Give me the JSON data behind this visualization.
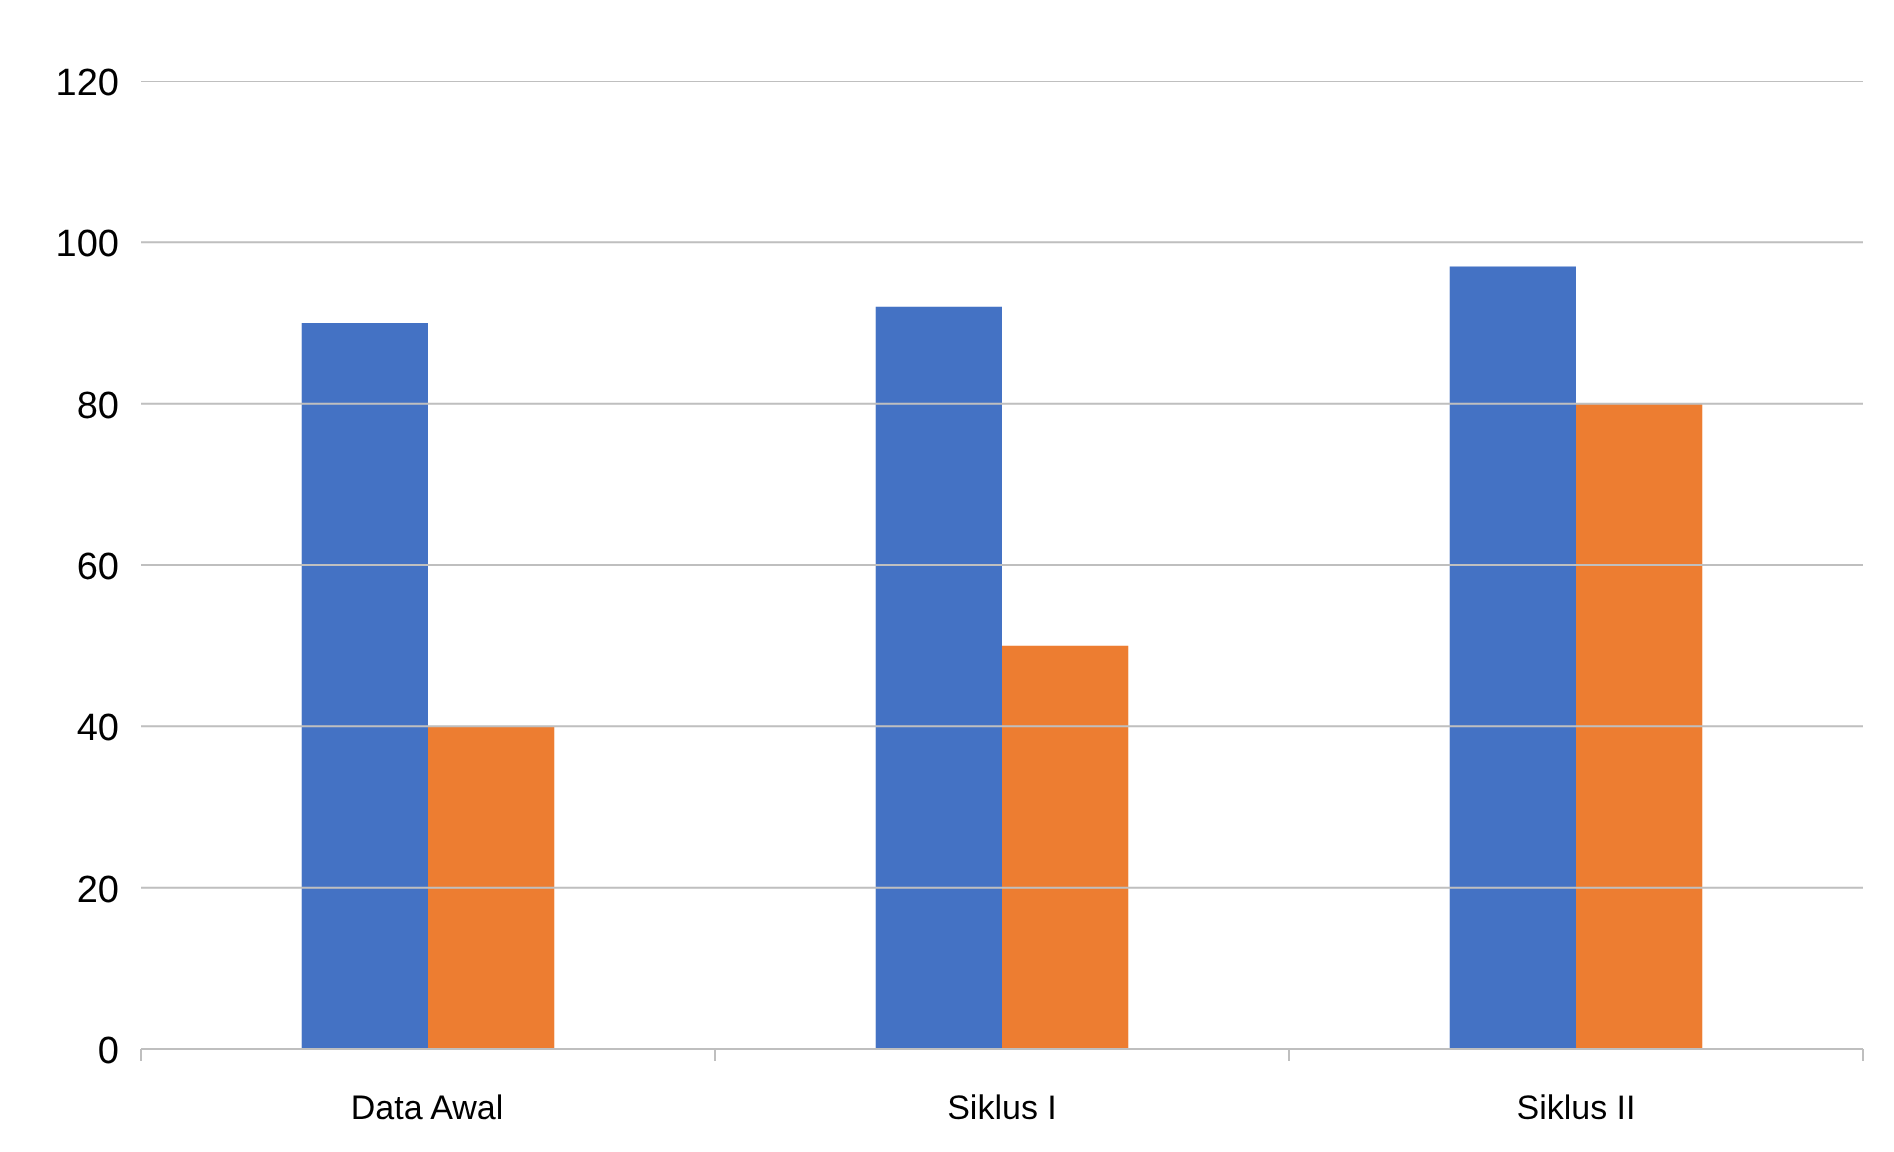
{
  "chart_data": {
    "type": "bar",
    "categories": [
      "Data Awal",
      "Siklus I",
      "Siklus II"
    ],
    "series": [
      {
        "color": "#4472c4",
        "values": [
          90,
          92,
          97
        ]
      },
      {
        "color": "#ed7d31",
        "values": [
          40,
          50,
          80
        ]
      }
    ],
    "ylim": [
      0,
      120
    ],
    "yticks": [
      0,
      20,
      40,
      60,
      80,
      100,
      120
    ],
    "grid": "y"
  }
}
